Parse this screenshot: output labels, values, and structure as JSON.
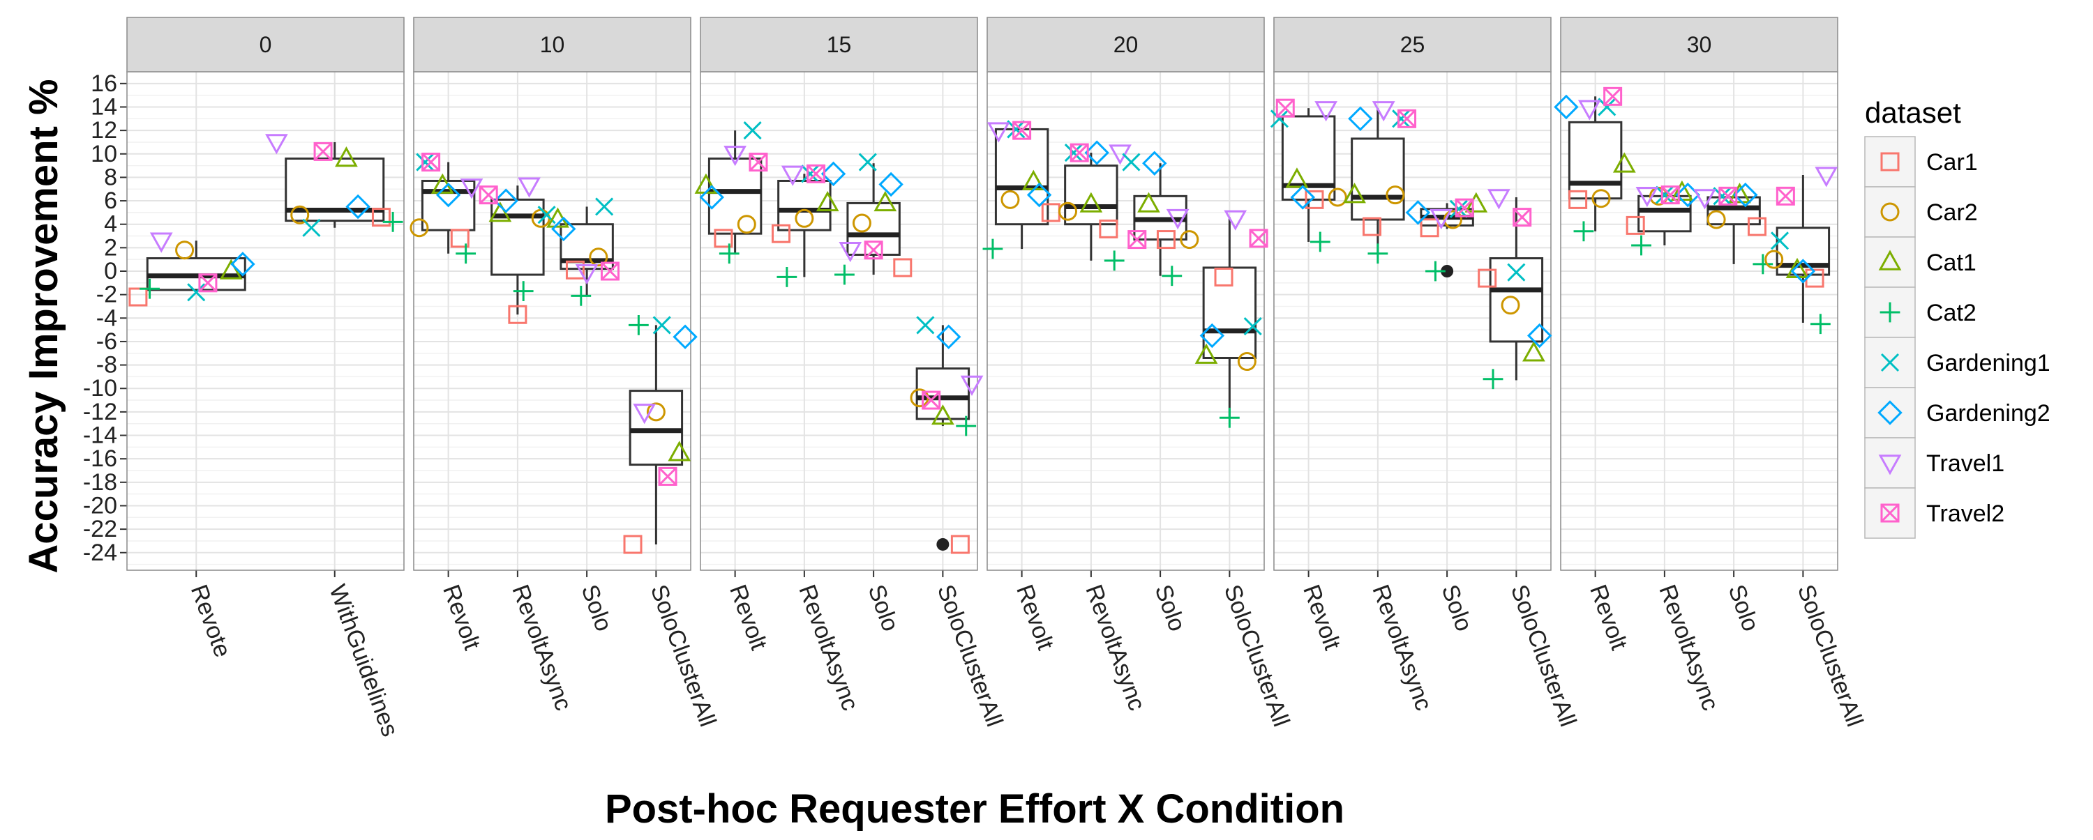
{
  "chart_data": {
    "type": "box",
    "xlabel": "Post-hoc Requester Effort X Condition",
    "ylabel": "Accuracy Improvement %",
    "ylim": [
      -25.5,
      17
    ],
    "yticks": [
      -24,
      -22,
      -20,
      -18,
      -16,
      -14,
      -12,
      -10,
      -8,
      -6,
      -4,
      -2,
      0,
      2,
      4,
      6,
      8,
      10,
      12,
      14,
      16
    ],
    "grid": true,
    "legend": {
      "title": "dataset",
      "position": "right",
      "entries": [
        {
          "name": "Car1",
          "color": "#F8766D",
          "shape": "square"
        },
        {
          "name": "Car2",
          "color": "#CD9600",
          "shape": "circle"
        },
        {
          "name": "Cat1",
          "color": "#7CAE00",
          "shape": "triangle-up"
        },
        {
          "name": "Cat2",
          "color": "#00BE67",
          "shape": "plus"
        },
        {
          "name": "Gardening1",
          "color": "#00BFC4",
          "shape": "cross"
        },
        {
          "name": "Gardening2",
          "color": "#00A9FF",
          "shape": "diamond"
        },
        {
          "name": "Travel1",
          "color": "#C77CFF",
          "shape": "triangle-down"
        },
        {
          "name": "Travel2",
          "color": "#FF61CC",
          "shape": "square-cross"
        }
      ]
    },
    "panels": [
      {
        "label": "0",
        "categories": [
          {
            "name": "Revote",
            "box": {
              "q1": -1.6,
              "median": -0.4,
              "q3": 1.1,
              "lower": -1.8,
              "upper": 2.6
            },
            "outliers": [],
            "points": {
              "Car1": -2.2,
              "Car2": 1.8,
              "Cat1": 0.0,
              "Cat2": -1.5,
              "Gardening1": -1.8,
              "Gardening2": 0.6,
              "Travel1": 2.6,
              "Travel2": -1.0
            }
          },
          {
            "name": "WithGuidelines",
            "box": {
              "q1": 4.3,
              "median": 5.2,
              "q3": 9.6,
              "lower": 3.7,
              "upper": 11.0
            },
            "outliers": [],
            "points": {
              "Car1": 4.6,
              "Car2": 4.8,
              "Cat1": 9.6,
              "Cat2": 4.2,
              "Gardening1": 3.7,
              "Gardening2": 5.5,
              "Travel1": 11.0,
              "Travel2": 10.2
            }
          }
        ]
      },
      {
        "label": "10",
        "categories": [
          {
            "name": "Revolt",
            "box": {
              "q1": 3.5,
              "median": 6.8,
              "q3": 7.7,
              "lower": 1.5,
              "upper": 9.3
            },
            "outliers": [],
            "points": {
              "Car1": 2.8,
              "Car2": 3.7,
              "Cat1": 7.3,
              "Cat2": 1.5,
              "Gardening1": 9.3,
              "Gardening2": 6.5,
              "Travel1": 7.2,
              "Travel2": 9.3
            }
          },
          {
            "name": "RevoltAsync",
            "box": {
              "q1": -0.3,
              "median": 4.7,
              "q3": 6.1,
              "lower": -3.7,
              "upper": 7.3
            },
            "outliers": [],
            "points": {
              "Car1": -3.7,
              "Car2": 4.5,
              "Cat1": 4.9,
              "Cat2": -1.7,
              "Gardening1": 4.8,
              "Gardening2": 6.0,
              "Travel1": 7.3,
              "Travel2": 6.5
            }
          },
          {
            "name": "Solo",
            "box": {
              "q1": 0.2,
              "median": 0.9,
              "q3": 4.0,
              "lower": -2.1,
              "upper": 5.5
            },
            "outliers": [],
            "points": {
              "Car1": 0.1,
              "Car2": 1.2,
              "Cat1": 4.4,
              "Cat2": -2.1,
              "Gardening1": 5.5,
              "Gardening2": 3.6,
              "Travel1": -0.1,
              "Travel2": 0.0
            }
          },
          {
            "name": "SoloClusterAll",
            "box": {
              "q1": -16.5,
              "median": -13.6,
              "q3": -10.2,
              "lower": -23.3,
              "upper": -4.6
            },
            "outliers": [],
            "points": {
              "Car1": -23.3,
              "Car2": -12.0,
              "Cat1": -15.5,
              "Cat2": -4.6,
              "Gardening1": -4.6,
              "Gardening2": -5.6,
              "Travel1": -12.0,
              "Travel2": -17.5
            }
          }
        ]
      },
      {
        "label": "15",
        "categories": [
          {
            "name": "Revolt",
            "box": {
              "q1": 3.2,
              "median": 6.8,
              "q3": 9.6,
              "lower": 1.5,
              "upper": 12.0
            },
            "outliers": [],
            "points": {
              "Car1": 2.8,
              "Car2": 4.0,
              "Cat1": 7.3,
              "Cat2": 1.5,
              "Gardening1": 12.0,
              "Gardening2": 6.3,
              "Travel1": 10.0,
              "Travel2": 9.3
            }
          },
          {
            "name": "RevoltAsync",
            "box": {
              "q1": 3.5,
              "median": 5.2,
              "q3": 7.7,
              "lower": -0.5,
              "upper": 8.3
            },
            "outliers": [],
            "points": {
              "Car1": 3.2,
              "Car2": 4.5,
              "Cat1": 5.8,
              "Cat2": -0.5,
              "Gardening1": 8.3,
              "Gardening2": 8.3,
              "Travel1": 8.3,
              "Travel2": 8.3
            }
          },
          {
            "name": "Solo",
            "box": {
              "q1": 1.4,
              "median": 3.1,
              "q3": 5.8,
              "lower": -0.3,
              "upper": 9.2
            },
            "outliers": [],
            "points": {
              "Car1": 0.3,
              "Car2": 4.1,
              "Cat1": 5.8,
              "Cat2": -0.3,
              "Gardening1": 9.3,
              "Gardening2": 7.4,
              "Travel1": 1.8,
              "Travel2": 1.8
            }
          },
          {
            "name": "SoloClusterAll",
            "box": {
              "q1": -12.6,
              "median": -10.8,
              "q3": -8.3,
              "lower": -13.2,
              "upper": -4.6
            },
            "outliers": [
              -23.3
            ],
            "points": {
              "Car1": -23.3,
              "Car2": -10.8,
              "Cat1": -12.4,
              "Cat2": -13.2,
              "Gardening1": -4.6,
              "Gardening2": -5.6,
              "Travel1": -9.6,
              "Travel2": -11.0
            }
          }
        ]
      },
      {
        "label": "20",
        "categories": [
          {
            "name": "Revolt",
            "box": {
              "q1": 4.0,
              "median": 7.1,
              "q3": 12.1,
              "lower": 1.9,
              "upper": 12.1
            },
            "outliers": [],
            "points": {
              "Car1": 5.0,
              "Car2": 6.1,
              "Cat1": 7.6,
              "Cat2": 1.9,
              "Gardening1": 12.1,
              "Gardening2": 6.5,
              "Travel1": 12.0,
              "Travel2": 12.0
            }
          },
          {
            "name": "RevoltAsync",
            "box": {
              "q1": 4.0,
              "median": 5.5,
              "q3": 9.0,
              "lower": 0.9,
              "upper": 10.1
            },
            "outliers": [],
            "points": {
              "Car1": 3.6,
              "Car2": 5.1,
              "Cat1": 5.7,
              "Cat2": 0.9,
              "Gardening1": 10.1,
              "Gardening2": 10.1,
              "Travel1": 10.1,
              "Travel2": 10.1
            }
          },
          {
            "name": "Solo",
            "box": {
              "q1": 2.7,
              "median": 4.4,
              "q3": 6.4,
              "lower": -0.4,
              "upper": 9.2
            },
            "outliers": [],
            "points": {
              "Car1": 2.7,
              "Car2": 2.7,
              "Cat1": 5.7,
              "Cat2": -0.4,
              "Gardening1": 9.3,
              "Gardening2": 9.2,
              "Travel1": 4.6,
              "Travel2": 2.7
            }
          },
          {
            "name": "SoloClusterAll",
            "box": {
              "q1": -7.4,
              "median": -5.1,
              "q3": 0.3,
              "lower": -12.5,
              "upper": 4.6
            },
            "outliers": [],
            "points": {
              "Car1": -0.5,
              "Car2": -7.7,
              "Cat1": -7.2,
              "Cat2": -12.5,
              "Gardening1": -4.7,
              "Gardening2": -5.5,
              "Travel1": 4.5,
              "Travel2": 2.8
            }
          }
        ]
      },
      {
        "label": "25",
        "categories": [
          {
            "name": "Revolt",
            "box": {
              "q1": 6.1,
              "median": 7.3,
              "q3": 13.2,
              "lower": 2.5,
              "upper": 13.9
            },
            "outliers": [],
            "points": {
              "Car1": 6.1,
              "Car2": 6.3,
              "Cat1": 7.8,
              "Cat2": 2.5,
              "Gardening1": 13.0,
              "Gardening2": 6.3,
              "Travel1": 13.8,
              "Travel2": 13.9
            }
          },
          {
            "name": "RevoltAsync",
            "box": {
              "q1": 4.4,
              "median": 6.3,
              "q3": 11.3,
              "lower": 1.5,
              "upper": 13.9
            },
            "outliers": [],
            "points": {
              "Car1": 3.8,
              "Car2": 6.5,
              "Cat1": 6.5,
              "Cat2": 1.5,
              "Gardening1": 13.0,
              "Gardening2": 13.0,
              "Travel1": 13.8,
              "Travel2": 13.0
            }
          },
          {
            "name": "Solo",
            "box": {
              "q1": 3.9,
              "median": 4.6,
              "q3": 5.3,
              "lower": 3.6,
              "upper": 5.8
            },
            "outliers": [
              0.0
            ],
            "points": {
              "Car1": 3.7,
              "Car2": 4.4,
              "Cat1": 5.7,
              "Cat2": 0.0,
              "Gardening1": 5.3,
              "Gardening2": 5.0,
              "Travel1": 4.6,
              "Travel2": 5.4
            }
          },
          {
            "name": "SoloClusterAll",
            "box": {
              "q1": -6.0,
              "median": -1.6,
              "q3": 1.1,
              "lower": -9.3,
              "upper": 6.3
            },
            "outliers": [],
            "points": {
              "Car1": -0.6,
              "Car2": -2.9,
              "Cat1": -7.0,
              "Cat2": -9.2,
              "Gardening1": -0.1,
              "Gardening2": -5.5,
              "Travel1": 6.3,
              "Travel2": 4.6
            }
          }
        ]
      },
      {
        "label": "30",
        "categories": [
          {
            "name": "Revolt",
            "box": {
              "q1": 6.2,
              "median": 7.5,
              "q3": 12.7,
              "lower": 3.4,
              "upper": 14.9
            },
            "outliers": [],
            "points": {
              "Car1": 6.1,
              "Car2": 6.2,
              "Cat1": 9.1,
              "Cat2": 3.4,
              "Gardening1": 14.0,
              "Gardening2": 14.0,
              "Travel1": 13.9,
              "Travel2": 14.9
            }
          },
          {
            "name": "RevoltAsync",
            "box": {
              "q1": 3.4,
              "median": 5.2,
              "q3": 6.4,
              "lower": 2.2,
              "upper": 6.7
            },
            "outliers": [],
            "points": {
              "Car1": 3.9,
              "Car2": 6.4,
              "Cat1": 6.7,
              "Cat2": 2.2,
              "Gardening1": 6.5,
              "Gardening2": 6.5,
              "Travel1": 6.5,
              "Travel2": 6.5
            }
          },
          {
            "name": "Solo",
            "box": {
              "q1": 4.0,
              "median": 5.4,
              "q3": 6.3,
              "lower": 0.6,
              "upper": 6.5
            },
            "outliers": [],
            "points": {
              "Car1": 3.8,
              "Car2": 4.4,
              "Cat1": 6.5,
              "Cat2": 0.6,
              "Gardening1": 6.4,
              "Gardening2": 6.5,
              "Travel1": 6.3,
              "Travel2": 6.4
            }
          },
          {
            "name": "SoloClusterAll",
            "box": {
              "q1": -0.3,
              "median": 0.5,
              "q3": 3.7,
              "lower": -4.4,
              "upper": 8.2
            },
            "outliers": [],
            "points": {
              "Car1": -0.6,
              "Car2": 1.0,
              "Cat1": 0.1,
              "Cat2": -4.5,
              "Gardening1": 2.6,
              "Gardening2": 0.0,
              "Travel1": 8.2,
              "Travel2": 6.4
            }
          }
        ]
      }
    ]
  }
}
